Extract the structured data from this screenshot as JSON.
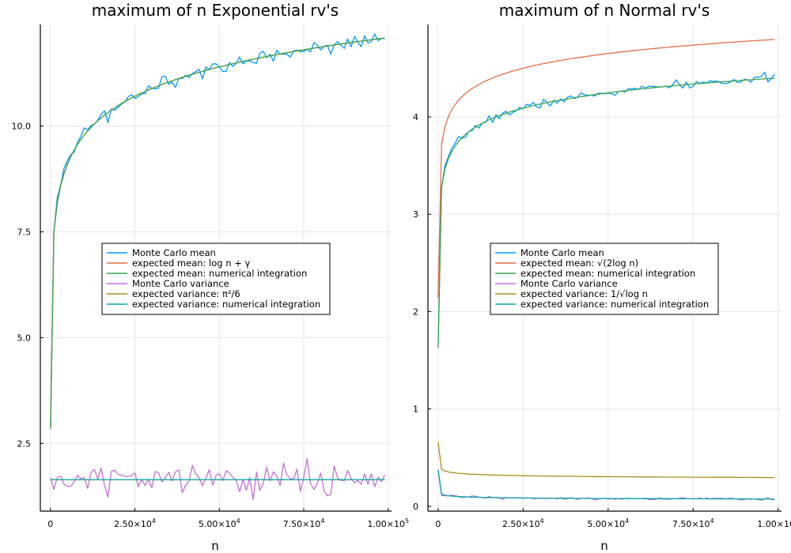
{
  "chart_data": [
    {
      "type": "line",
      "title": "maximum of n Exponential rv's",
      "xlabel": "n",
      "ylabel": "",
      "xlim": [
        -3000,
        101000
      ],
      "ylim": [
        0.9,
        12.4
      ],
      "xticks": [
        0,
        25000,
        50000,
        75000,
        100000
      ],
      "xtick_labels": [
        {
          "base": "0",
          "exp": ""
        },
        {
          "base": "2.50×10",
          "exp": "4"
        },
        {
          "base": "5.00×10",
          "exp": "4"
        },
        {
          "base": "7.50×10",
          "exp": "4"
        },
        {
          "base": "1.00×10",
          "exp": "5"
        }
      ],
      "yticks": [
        2.5,
        5.0,
        7.5,
        10.0
      ],
      "ytick_labels": [
        "2.5",
        "5.0",
        "7.5",
        "10.0"
      ],
      "grid": true,
      "legend_position": "center",
      "series": [
        {
          "name": "Monte Carlo mean",
          "color": "#009af9",
          "values": []
        },
        {
          "name": "expected mean: log n + γ",
          "color": "#e26f46",
          "values": []
        },
        {
          "name": "expected mean: numerical integration",
          "color": "#3da44d",
          "values": []
        },
        {
          "name": "Monte Carlo variance",
          "color": "#c271d2",
          "values": []
        },
        {
          "name": "expected variance: π²/6",
          "color": "#ac8d18",
          "values": []
        },
        {
          "name": "expected variance: numerical integration",
          "color": "#00a9ad",
          "values": []
        }
      ]
    },
    {
      "type": "line",
      "title": "maximum of n Normal rv's",
      "xlabel": "n",
      "ylabel": "",
      "xlim": [
        -3000,
        101000
      ],
      "ylim": [
        -0.05,
        4.95
      ],
      "xticks": [
        0,
        25000,
        50000,
        75000,
        100000
      ],
      "xtick_labels": [
        {
          "base": "0",
          "exp": ""
        },
        {
          "base": "2.50×10",
          "exp": "4"
        },
        {
          "base": "5.00×10",
          "exp": "4"
        },
        {
          "base": "7.50×10",
          "exp": "4"
        },
        {
          "base": "1.00×10",
          "exp": "5"
        }
      ],
      "yticks": [
        0,
        1,
        2,
        3,
        4
      ],
      "ytick_labels": [
        "0",
        "1",
        "2",
        "3",
        "4"
      ],
      "grid": true,
      "legend_position": "center",
      "series": [
        {
          "name": "Monte Carlo mean",
          "color": "#009af9",
          "values": []
        },
        {
          "name": "expected mean: √(2log n)",
          "color": "#e26f46",
          "values": []
        },
        {
          "name": "expected mean: numerical integration",
          "color": "#3da44d",
          "values": []
        },
        {
          "name": "Monte Carlo variance",
          "color": "#c271d2",
          "values": []
        },
        {
          "name": "expected variance: 1/√log n",
          "color": "#ac8d18",
          "values": []
        },
        {
          "name": "expected variance: numerical integration",
          "color": "#00a9ad",
          "values": []
        }
      ]
    }
  ]
}
